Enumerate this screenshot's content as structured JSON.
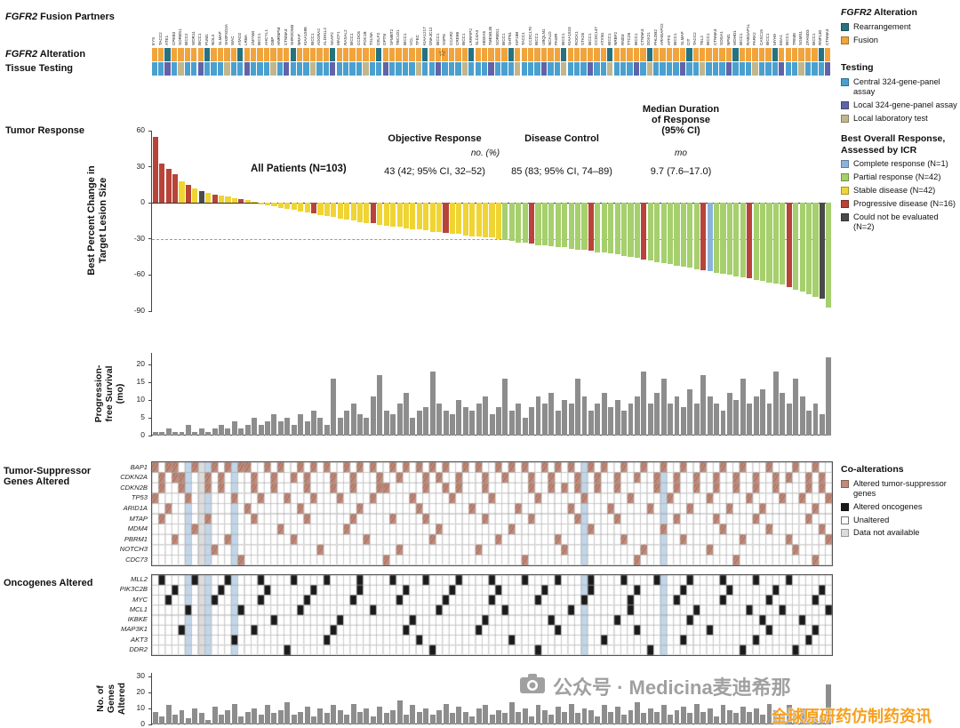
{
  "labels": {
    "fgfr2": "FGFR2",
    "fusion_partners_rest": " Fusion Partners",
    "alteration_rest": " Alteration",
    "tissue_testing": "Tissue Testing",
    "tumor_response": "Tumor Response",
    "waterfall_ylabel_1": "Best Percent Change in",
    "waterfall_ylabel_2": "Target Lesion Size",
    "pfs_ylabel_1": "Progression-",
    "pfs_ylabel_2": "free Survival",
    "pfs_ylabel_3": "(mo)",
    "tsg_label_1": "Tumor-Suppressor",
    "tsg_label_2": "Genes Altered",
    "onco_label": "Oncogenes Altered",
    "genes_ylabel_1": "No. of",
    "genes_ylabel_2": "Genes",
    "genes_ylabel_3": "Altered"
  },
  "stats": {
    "all_patients": "All Patients (N=103)",
    "objective_response_label": "Objective Response",
    "disease_control_label": "Disease Control",
    "median_duration_1": "Median Duration",
    "median_duration_2": "of Response",
    "median_duration_3": "(95% CI)",
    "no_pct": "no. (%)",
    "mo": "mo",
    "objective_response_value": "43 (42; 95% CI, 32–52)",
    "disease_control_value": "85 (83; 95% CI, 74–89)",
    "median_duration_value": "9.7 (7.6–17.0)",
    "star": "☆"
  },
  "legends": {
    "alteration": {
      "title_italic": "FGFR2",
      "title_rest": " Alteration",
      "items": [
        {
          "label": "Rearrangement",
          "color": "#27727f"
        },
        {
          "label": "Fusion",
          "color": "#f1a43b"
        }
      ]
    },
    "testing": {
      "title": "Testing",
      "items": [
        {
          "label": "Central 324-gene-panel assay",
          "color": "#4aa0cf"
        },
        {
          "label": "Local 324-gene-panel assay",
          "color": "#6163a8"
        },
        {
          "label": "Local laboratory test",
          "color": "#c2b68c"
        }
      ]
    },
    "response": {
      "title_1": "Best Overall Response,",
      "title_2": "Assessed by ICR",
      "items": [
        {
          "label": "Complete response (N=1)",
          "color": "#8cb2da"
        },
        {
          "label": "Partial response (N=42)",
          "color": "#a6cf6d"
        },
        {
          "label": "Stable disease (N=42)",
          "color": "#efd434"
        },
        {
          "label": "Progressive disease (N=16)",
          "color": "#b84338"
        },
        {
          "label": "Could not be evaluated (N=2)",
          "color": "#4a4a4a"
        }
      ]
    },
    "coalterations": {
      "title": "Co-alterations",
      "items": [
        {
          "label": "Altered tumor-suppressor genes",
          "color": "#c18a79",
          "hatch": true
        },
        {
          "label": "Altered oncogenes",
          "color": "#1a1a1a"
        },
        {
          "label": "Unaltered",
          "color": "#ffffff"
        },
        {
          "label": "Data not available",
          "color": "#dcdcdc"
        }
      ]
    }
  },
  "watermark": {
    "main": "公众号 · Medicina麦迪希那",
    "sub": "全球原研药仿制药资讯"
  },
  "chart_data": [
    {
      "id": "waterfall",
      "type": "bar",
      "title": "Tumor Response",
      "ylabel": "Best Percent Change in Target Lesion Size",
      "ylim": [
        -90,
        60
      ],
      "yticks": [
        60,
        30,
        0,
        -30,
        -60,
        -90
      ],
      "reference_line": -30,
      "n_patients": 103,
      "star_index": 44,
      "values": [
        55,
        33,
        28,
        24,
        18,
        15,
        12,
        10,
        8,
        7,
        6,
        5,
        4,
        3,
        2,
        1,
        -1,
        -2,
        -3,
        -4,
        -5,
        -6,
        -7,
        -8,
        -9,
        -10,
        -11,
        -12,
        -13,
        -14,
        -15,
        -16,
        -17,
        -17,
        -18,
        -19,
        -20,
        -20,
        -21,
        -22,
        -22,
        -23,
        -24,
        -24,
        -25,
        -26,
        -26,
        -27,
        -28,
        -28,
        -29,
        -29,
        -30,
        -31,
        -32,
        -33,
        -33,
        -34,
        -35,
        -35,
        -36,
        -37,
        -37,
        -38,
        -39,
        -39,
        -40,
        -41,
        -41,
        -42,
        -43,
        -44,
        -45,
        -46,
        -47,
        -48,
        -49,
        -50,
        -51,
        -52,
        -53,
        -54,
        -55,
        -56,
        -57,
        -58,
        -59,
        -60,
        -61,
        -62,
        -63,
        -64,
        -65,
        -66,
        -67,
        -68,
        -70,
        -72,
        -74,
        -76,
        -78,
        -80,
        -87
      ],
      "responses": [
        "RRRRYRYDYRYYYRYY",
        "YYYYYYYYRYYYYYYYYRYYYYYYYYYYRYYYYYYYY",
        "GGGGRGGGGGGGGRGGGGGGGRGGGGGGGGRBGGGGGRGGGGGRGGGGDG"
      ],
      "response_colors": {
        "R": "#b84338",
        "Y": "#efd434",
        "G": "#a6cf6d",
        "B": "#8cb2da",
        "D": "#4a4a4a"
      },
      "fusion_partners": [
        "EYS",
        "TACC2",
        "ATE1",
        "CPEB3",
        "SORBS1",
        "BICC2",
        "WDR11",
        "BICC1",
        "PUM1",
        "NOL4",
        "SLMAP",
        "SH3PXD2A",
        "WAC",
        "ATAD2",
        "LRBA",
        "ZMYM4",
        "BICC1",
        "AHCYL1",
        "DBP",
        "HNRNPM",
        "CTNNA3",
        "SHROOM3",
        "NRAP",
        "KIAA1598",
        "BICC1",
        "ADGRA2",
        "ALDH1L2",
        "SKAP2",
        "MACF1",
        "RASAL2",
        "BICC1",
        "CCDC6",
        "POC1B",
        "TXLNA",
        "CELF2",
        "OPTN",
        "SFMBT2",
        "TBC1D1",
        "BICC1",
        "VCL",
        "TFEC",
        "KIAA1217",
        "DNAJC12",
        "BICC1",
        "SSPN",
        "CCAR2",
        "CREB5",
        "BICC1",
        "LRRFIP2",
        "SLC4A4",
        "MGEA5",
        "TMEM135",
        "SORBS1",
        "BICC1",
        "SHTN1",
        "KIF16B",
        "TACC1",
        "CCDC170",
        "BICC1",
        "UBQLN1",
        "NCALD",
        "PAWR",
        "BICC1",
        "KIAA1524",
        "ROCK1",
        "STK26",
        "BICC1",
        "CCDC147",
        "ATXN1",
        "BICC1",
        "NRBF2",
        "RND3",
        "TTC28",
        "BICC1",
        "CTNNA3",
        "DDX21",
        "PHLDB2",
        "ARHGAP22",
        "AFF4",
        "BICC1",
        "SLMAP",
        "CIT",
        "TACC2",
        "TEL2",
        "BICC1",
        "CTNNA3",
        "SOGA1",
        "NPM1",
        "WDHD1",
        "BICC1",
        "RABGAP1L",
        "PARK2",
        "CASC15",
        "BICC1",
        "MYH9",
        "EEA1",
        "BICC1",
        "TRIM8",
        "SGMS1",
        "ZFAND3",
        "BICC1",
        "RNF130",
        "CTNNA3"
      ],
      "alterations": [
        "FFRFFFFFRF",
        "FFFRFFFFFF",
        "FRFFFFFRFF",
        "FFFFRFFFFF",
        "FRFFFFFFRF",
        "FFFFRFFFFF",
        "FFRFFFFFFR",
        "FFFFFRFFFF",
        "FRFFFFFFRF",
        "FFFFRFFFFF",
        "FRF"
      ],
      "alteration_colors": {
        "F": "#f1a43b",
        "R": "#27727f"
      },
      "testing": [
        "CCLCTCCLCC",
        "CTCCLCCCTC",
        "LCCCTCCLCC",
        "CCTCCLCCCC",
        "TCCLCCCTCC",
        "CLCCCTCCCL",
        "CCTCCCLCCT",
        "CCCLCTCCCC",
        "LCCTCCCLCC",
        "CTCCCLCCTC",
        "CCL"
      ],
      "testing_colors": {
        "C": "#4aa0cf",
        "L": "#6163a8",
        "T": "#c2b68c"
      }
    },
    {
      "id": "pfs",
      "type": "bar",
      "ylabel": "Progression-free Survival (mo)",
      "ylim": [
        0,
        20
      ],
      "yticks": [
        0,
        5,
        10,
        15,
        20
      ],
      "bar_color": "#8d8d8d",
      "values": [
        1,
        1,
        2,
        1,
        1,
        3,
        1,
        2,
        1,
        2,
        3,
        2,
        4,
        2,
        3,
        5,
        3,
        4,
        6,
        4,
        5,
        3,
        6,
        4,
        7,
        5,
        3,
        16,
        5,
        7,
        9,
        6,
        5,
        11,
        17,
        7,
        6,
        9,
        12,
        5,
        7,
        8,
        18,
        9,
        7,
        6,
        10,
        8,
        7,
        9,
        11,
        6,
        8,
        16,
        7,
        9,
        5,
        8,
        11,
        9,
        12,
        7,
        10,
        9,
        16,
        11,
        7,
        9,
        12,
        8,
        10,
        7,
        9,
        11,
        18,
        9,
        12,
        16,
        9,
        11,
        8,
        13,
        9,
        17,
        11,
        9,
        7,
        12,
        10,
        16,
        9,
        11,
        13,
        9,
        18,
        12,
        9,
        16,
        11,
        7,
        9,
        6,
        22
      ]
    },
    {
      "id": "tsg_heatmap",
      "type": "heatmap",
      "title": "Tumor-Suppressor Genes Altered",
      "altered_color": "#c18a79",
      "highlight_columns": [
        5,
        8,
        12,
        65,
        77
      ],
      "na_columns": [
        7
      ],
      "rows": [
        {
          "gene": "BAP1",
          "altered": [
            0,
            2,
            3,
            6,
            9,
            11,
            13,
            14,
            17,
            19,
            22,
            24,
            26,
            29,
            31,
            33,
            36,
            38,
            40,
            42,
            44,
            47,
            49,
            52,
            54,
            56,
            59,
            61,
            63,
            66,
            68,
            71,
            74,
            77,
            80,
            83,
            86,
            89,
            93,
            97,
            100
          ]
        },
        {
          "gene": "CDKN2A",
          "altered": [
            1,
            3,
            4,
            8,
            10,
            15,
            18,
            21,
            23,
            27,
            30,
            34,
            37,
            41,
            43,
            46,
            50,
            53,
            57,
            60,
            64,
            67,
            70,
            73,
            76,
            79,
            82,
            85,
            88,
            91,
            94,
            96,
            99,
            101
          ]
        },
        {
          "gene": "CDKN2B",
          "altered": [
            1,
            4,
            8,
            10,
            15,
            18,
            23,
            27,
            30,
            34,
            35,
            41,
            44,
            46,
            50,
            57,
            60,
            62,
            64,
            67,
            70,
            76,
            79,
            82,
            85,
            88,
            91,
            94,
            99,
            101
          ]
        },
        {
          "gene": "TP53",
          "altered": [
            0,
            5,
            12,
            16,
            20,
            24,
            28,
            33,
            39,
            45,
            51,
            58,
            65,
            72,
            78,
            84,
            90,
            95,
            98,
            102
          ]
        },
        {
          "gene": "ARID1A",
          "altered": [
            2,
            7,
            14,
            22,
            31,
            40,
            48,
            55,
            63,
            69,
            75,
            81,
            87,
            92,
            100
          ]
        },
        {
          "gene": "MTAP",
          "altered": [
            1,
            8,
            15,
            23,
            30,
            36,
            41,
            50,
            57,
            64,
            70,
            79,
            85,
            91,
            99
          ]
        },
        {
          "gene": "MDM4",
          "altered": [
            6,
            19,
            29,
            43,
            54,
            66,
            77,
            86,
            93,
            101
          ]
        },
        {
          "gene": "PBRM1",
          "altered": [
            3,
            11,
            21,
            32,
            42,
            52,
            61,
            71,
            80,
            89,
            96,
            102
          ]
        },
        {
          "gene": "NOTCH3",
          "altered": [
            9,
            25,
            37,
            49,
            62,
            74,
            84,
            97
          ]
        },
        {
          "gene": "CDC73",
          "altered": [
            13,
            35,
            56,
            73,
            88,
            100
          ]
        }
      ]
    },
    {
      "id": "onco_heatmap",
      "type": "heatmap",
      "title": "Oncogenes Altered",
      "altered_color": "#1a1a1a",
      "highlight_columns": [
        5,
        8,
        12,
        65,
        77
      ],
      "na_columns": [
        7
      ],
      "rows": [
        {
          "gene": "MLL2",
          "altered": [
            1,
            6,
            11,
            16,
            21,
            26,
            31,
            36,
            41,
            46,
            51,
            56,
            61,
            66,
            71,
            76,
            81,
            86,
            91,
            96
          ]
        },
        {
          "gene": "PIK3C2B",
          "altered": [
            3,
            10,
            17,
            24,
            31,
            38,
            45,
            52,
            59,
            66,
            73,
            80,
            87,
            94,
            101
          ]
        },
        {
          "gene": "MYC",
          "altered": [
            2,
            9,
            16,
            23,
            30,
            37,
            44,
            51,
            58,
            65,
            72,
            79,
            86,
            93,
            100
          ]
        },
        {
          "gene": "MCL1",
          "altered": [
            5,
            13,
            22,
            33,
            43,
            53,
            63,
            72,
            82,
            90,
            95,
            102
          ]
        },
        {
          "gene": "IKBKE",
          "altered": [
            7,
            18,
            28,
            39,
            50,
            60,
            70,
            81,
            92,
            98
          ]
        },
        {
          "gene": "MAP3K1",
          "altered": [
            4,
            15,
            27,
            38,
            49,
            61,
            73,
            84,
            93,
            100
          ]
        },
        {
          "gene": "AKT3",
          "altered": [
            12,
            26,
            40,
            54,
            68,
            80,
            91,
            99
          ]
        },
        {
          "gene": "DDR2",
          "altered": [
            20,
            42,
            58,
            75,
            89,
            97
          ]
        }
      ]
    },
    {
      "id": "genes_altered",
      "type": "bar",
      "ylabel": "No. of Genes Altered",
      "ylim": [
        0,
        30
      ],
      "yticks": [
        0,
        10,
        20,
        30
      ],
      "bar_color": "#8d8d8d",
      "values": [
        8,
        5,
        12,
        6,
        9,
        4,
        10,
        7,
        3,
        11,
        6,
        9,
        13,
        5,
        8,
        10,
        6,
        12,
        7,
        9,
        14,
        6,
        8,
        11,
        5,
        10,
        7,
        12,
        9,
        6,
        13,
        8,
        10,
        5,
        11,
        7,
        9,
        15,
        6,
        12,
        8,
        10,
        6,
        9,
        13,
        7,
        11,
        8,
        5,
        10,
        12,
        6,
        9,
        7,
        14,
        8,
        10,
        5,
        12,
        9,
        6,
        11,
        8,
        13,
        7,
        10,
        9,
        5,
        12,
        8,
        11,
        6,
        9,
        14,
        7,
        10,
        8,
        12,
        6,
        9,
        11,
        7,
        13,
        8,
        10,
        5,
        12,
        9,
        7,
        11,
        8,
        10,
        6,
        13,
        9,
        7,
        12,
        8,
        10,
        6,
        9,
        5,
        25
      ]
    }
  ]
}
